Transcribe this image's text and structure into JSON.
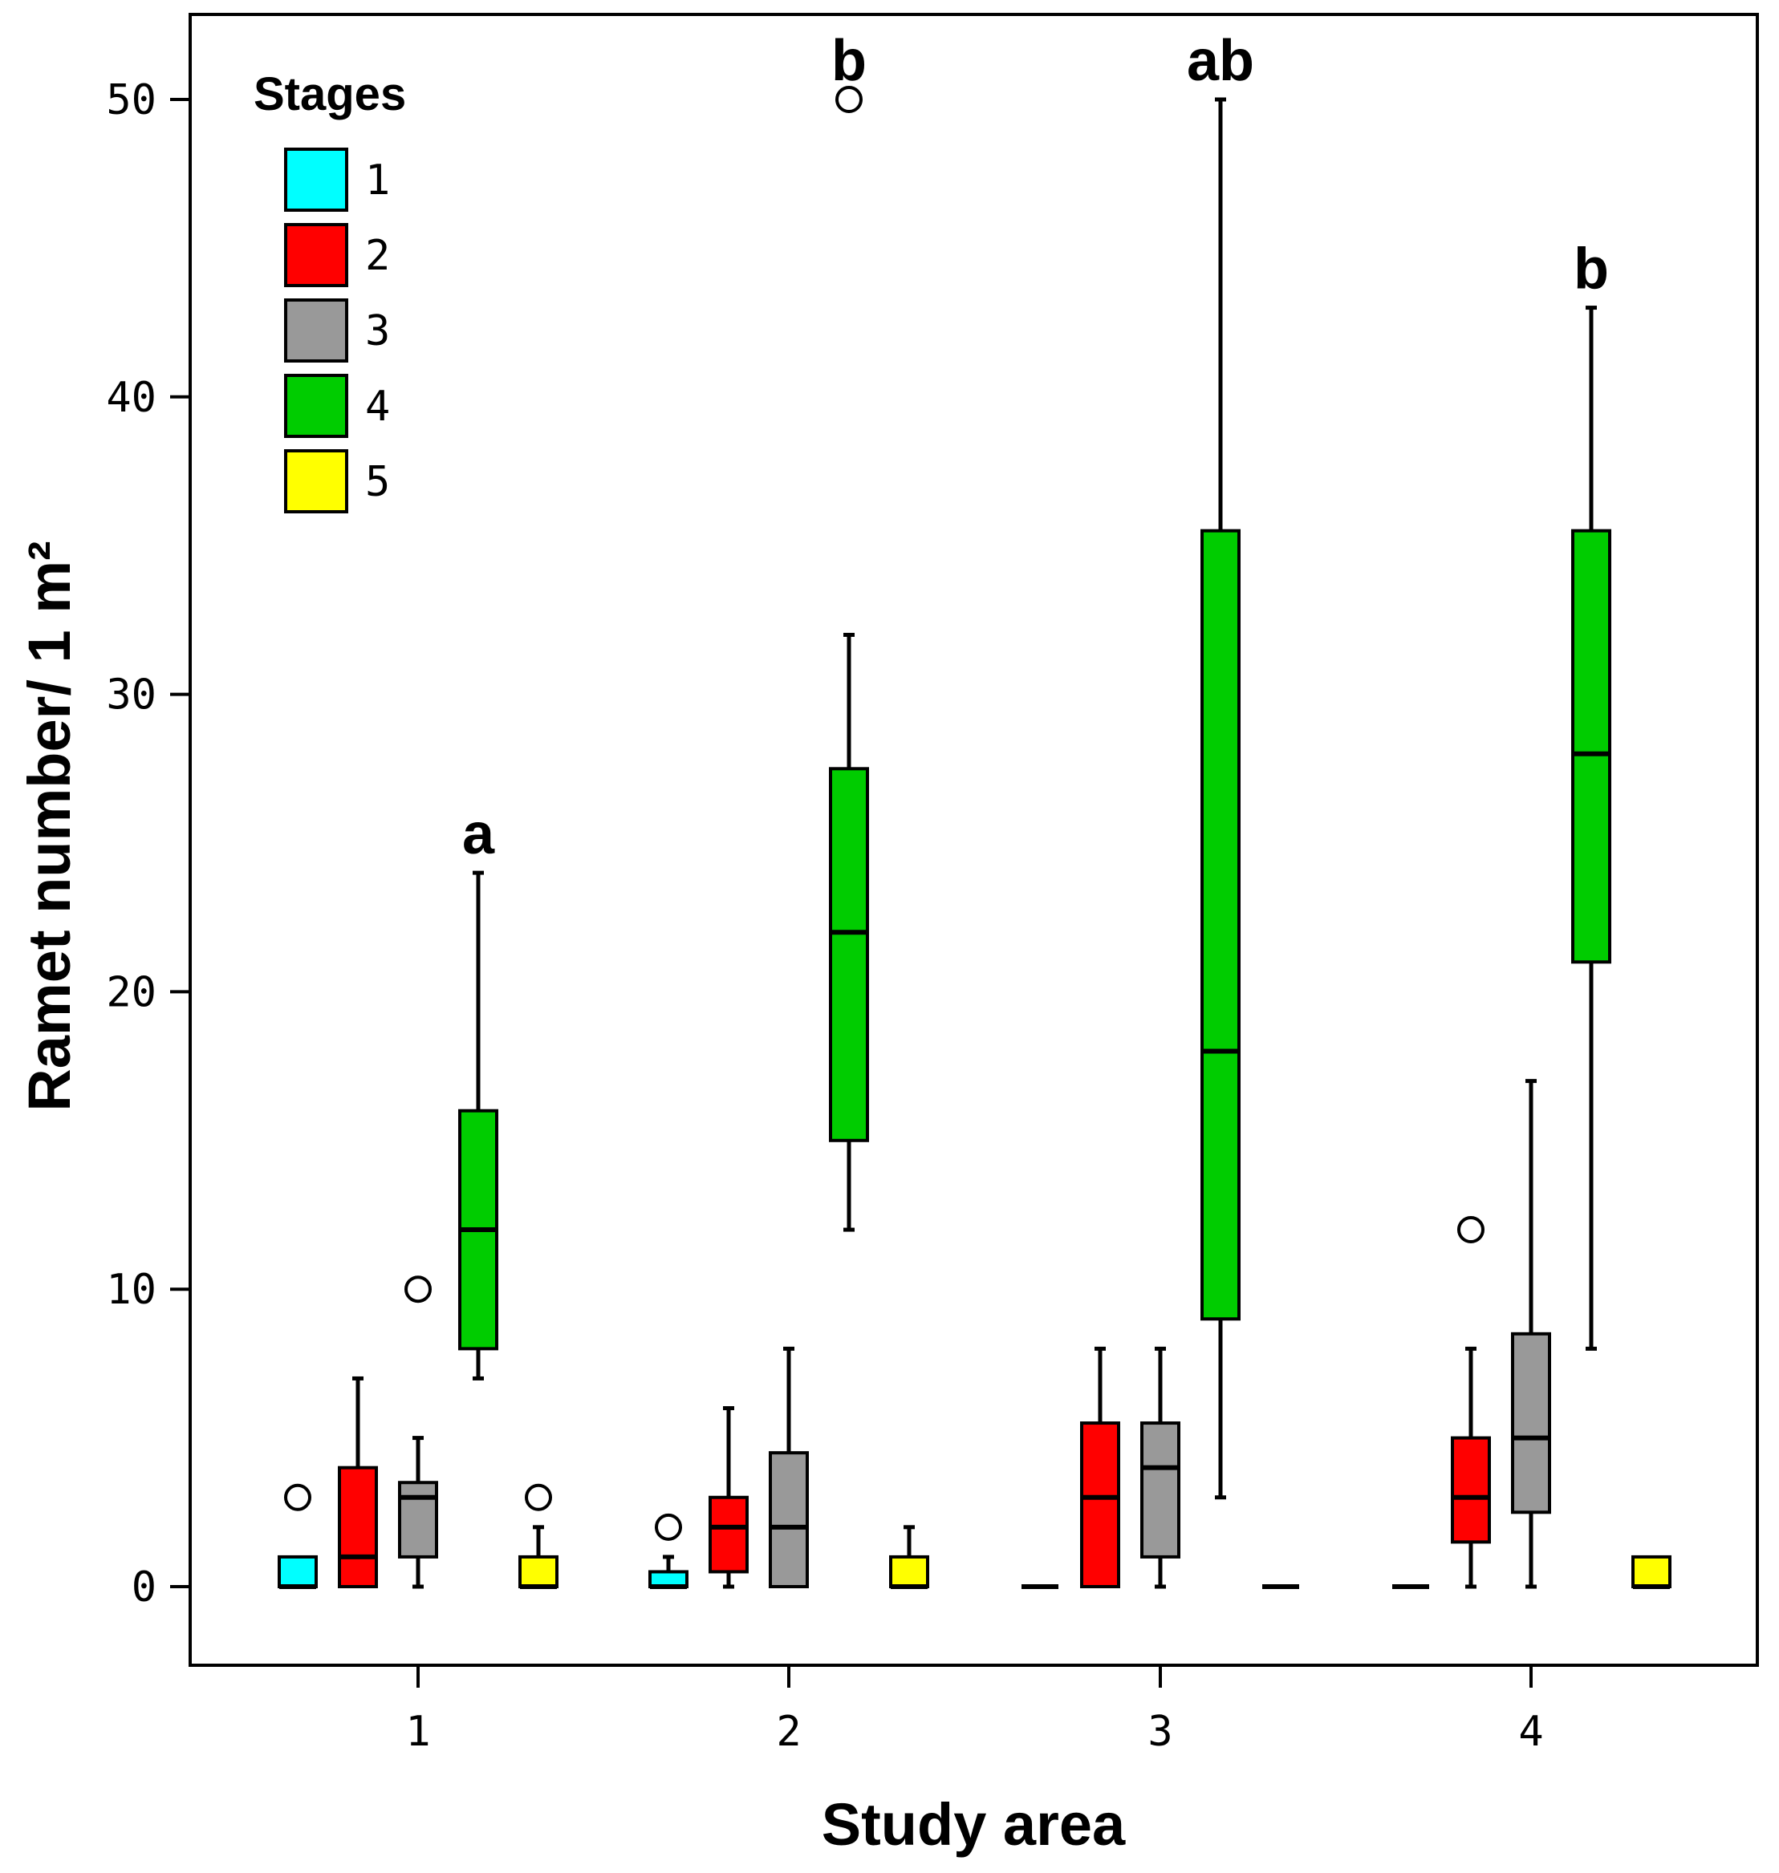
{
  "chart_data": {
    "type": "boxplot",
    "title": "",
    "xlabel": "Study area",
    "ylabel": "Ramet number/ 1 m²",
    "ylim": [
      -2.8,
      52.8
    ],
    "yticks": [
      0,
      10,
      20,
      30,
      40,
      50
    ],
    "categories": [
      "1",
      "2",
      "3",
      "4"
    ],
    "legend": {
      "title": "Stages",
      "position": "top-left",
      "entries": [
        {
          "label": "1",
          "color": "#00FFFF"
        },
        {
          "label": "2",
          "color": "#FF0000"
        },
        {
          "label": "3",
          "color": "#999999"
        },
        {
          "label": "4",
          "color": "#00CC00"
        },
        {
          "label": "5",
          "color": "#FFFF00"
        }
      ]
    },
    "series": [
      {
        "name": "1",
        "color": "#00FFFF",
        "boxes": [
          {
            "min": 0,
            "q1": 0,
            "median": 0,
            "q3": 1,
            "max": 1,
            "outliers": [
              3
            ]
          },
          {
            "min": 0,
            "q1": 0,
            "median": 0,
            "q3": 0.5,
            "max": 1,
            "outliers": [
              2
            ]
          },
          {
            "min": 0,
            "q1": 0,
            "median": 0,
            "q3": 0,
            "max": 0,
            "outliers": []
          },
          {
            "min": 0,
            "q1": 0,
            "median": 0,
            "q3": 0,
            "max": 0,
            "outliers": []
          }
        ]
      },
      {
        "name": "2",
        "color": "#FF0000",
        "boxes": [
          {
            "min": 0,
            "q1": 0,
            "median": 1,
            "q3": 4,
            "max": 7,
            "outliers": []
          },
          {
            "min": 0,
            "q1": 0.5,
            "median": 2,
            "q3": 3,
            "max": 6,
            "outliers": []
          },
          {
            "min": 0,
            "q1": 0,
            "median": 3,
            "q3": 5.5,
            "max": 8,
            "outliers": []
          },
          {
            "min": 0,
            "q1": 1.5,
            "median": 3,
            "q3": 5,
            "max": 8,
            "outliers": [
              12
            ]
          }
        ]
      },
      {
        "name": "3",
        "color": "#999999",
        "boxes": [
          {
            "min": 0,
            "q1": 1,
            "median": 3,
            "q3": 3.5,
            "max": 5,
            "outliers": [
              10
            ]
          },
          {
            "min": 0,
            "q1": 0,
            "median": 2,
            "q3": 4.5,
            "max": 8,
            "outliers": []
          },
          {
            "min": 0,
            "q1": 1,
            "median": 4,
            "q3": 5.5,
            "max": 8,
            "outliers": []
          },
          {
            "min": 0,
            "q1": 2.5,
            "median": 5,
            "q3": 8.5,
            "max": 17,
            "outliers": []
          }
        ]
      },
      {
        "name": "4",
        "color": "#00CC00",
        "boxes": [
          {
            "min": 7,
            "q1": 8,
            "median": 12,
            "q3": 16,
            "max": 24,
            "outliers": []
          },
          {
            "min": 12,
            "q1": 15,
            "median": 22,
            "q3": 27.5,
            "max": 32,
            "outliers": [
              50
            ]
          },
          {
            "min": 3,
            "q1": 9,
            "median": 18,
            "q3": 35.5,
            "max": 50,
            "outliers": []
          },
          {
            "min": 8,
            "q1": 21,
            "median": 28,
            "q3": 35.5,
            "max": 43,
            "outliers": []
          }
        ]
      },
      {
        "name": "5",
        "color": "#FFFF00",
        "boxes": [
          {
            "min": 0,
            "q1": 0,
            "median": 0,
            "q3": 1,
            "max": 2,
            "outliers": [
              3
            ]
          },
          {
            "min": 0,
            "q1": 0,
            "median": 0,
            "q3": 1,
            "max": 2,
            "outliers": []
          },
          {
            "min": 0,
            "q1": 0,
            "median": 0,
            "q3": 0,
            "max": 0,
            "outliers": []
          },
          {
            "min": 0,
            "q1": 0,
            "median": 0,
            "q3": 1,
            "max": 1,
            "outliers": []
          }
        ]
      }
    ],
    "annotations": [
      {
        "text": "a",
        "category": "1",
        "series": "4"
      },
      {
        "text": "b",
        "category": "2",
        "series": "4"
      },
      {
        "text": "ab",
        "category": "3",
        "series": "4"
      },
      {
        "text": "b",
        "category": "4",
        "series": "4"
      }
    ]
  }
}
